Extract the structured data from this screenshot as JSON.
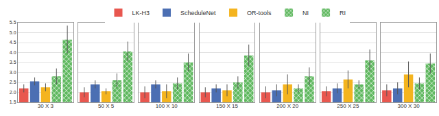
{
  "chart_data": {
    "type": "bar",
    "categories": [
      "30 X 3",
      "50 X 5",
      "100 X 10",
      "150 X 15",
      "200 X 20",
      "250 X 25",
      "300 X 30"
    ],
    "series": [
      {
        "name": "LK-H3",
        "color": "#e8574f",
        "values": [
          2.2,
          2.0,
          2.0,
          2.0,
          2.0,
          2.05,
          2.1
        ],
        "errors": [
          0.2,
          0.25,
          0.3,
          0.25,
          0.3,
          0.25,
          0.3
        ]
      },
      {
        "name": "ScheduleNet",
        "color": "#4c6fb3",
        "values": [
          2.55,
          2.4,
          2.4,
          2.2,
          2.1,
          2.2,
          2.2
        ],
        "errors": [
          0.2,
          0.2,
          0.2,
          0.2,
          0.3,
          0.25,
          0.3
        ]
      },
      {
        "name": "OR-tools",
        "color": "#f4b41f",
        "values": [
          2.25,
          2.05,
          2.05,
          2.1,
          2.4,
          2.65,
          2.9
        ],
        "errors": [
          0.2,
          0.15,
          0.35,
          0.3,
          0.5,
          0.45,
          0.65
        ]
      },
      {
        "name": "NI",
        "color": "#5fb85f",
        "marker": "hatched",
        "values": [
          2.8,
          2.6,
          2.45,
          2.5,
          2.2,
          2.4,
          2.45
        ],
        "errors": [
          0.4,
          0.35,
          0.3,
          0.3,
          0.2,
          0.2,
          0.3
        ]
      },
      {
        "name": "RI",
        "color": "#5fb85f",
        "marker": "hatched",
        "values": [
          4.65,
          4.05,
          3.5,
          3.85,
          2.8,
          3.6,
          3.45
        ],
        "errors": [
          0.7,
          0.5,
          0.45,
          0.55,
          0.45,
          0.55,
          0.5
        ]
      }
    ],
    "ylim": [
      1.5,
      5.5
    ],
    "yticks": [
      {
        "value": 1.5,
        "label": "1.5"
      },
      {
        "value": 2,
        "label": "2.0"
      },
      {
        "value": 2.5,
        "label": "2.5"
      },
      {
        "value": 3,
        "label": "3.0"
      },
      {
        "value": 3.5,
        "label": "3.5"
      },
      {
        "value": 4,
        "label": "4.0"
      },
      {
        "value": 4.5,
        "label": "4.5"
      },
      {
        "value": 5,
        "label": "5.0"
      },
      {
        "value": 5.5,
        "label": "5.5"
      }
    ],
    "grid": true,
    "legend": "top",
    "tick_labels": "y"
  }
}
